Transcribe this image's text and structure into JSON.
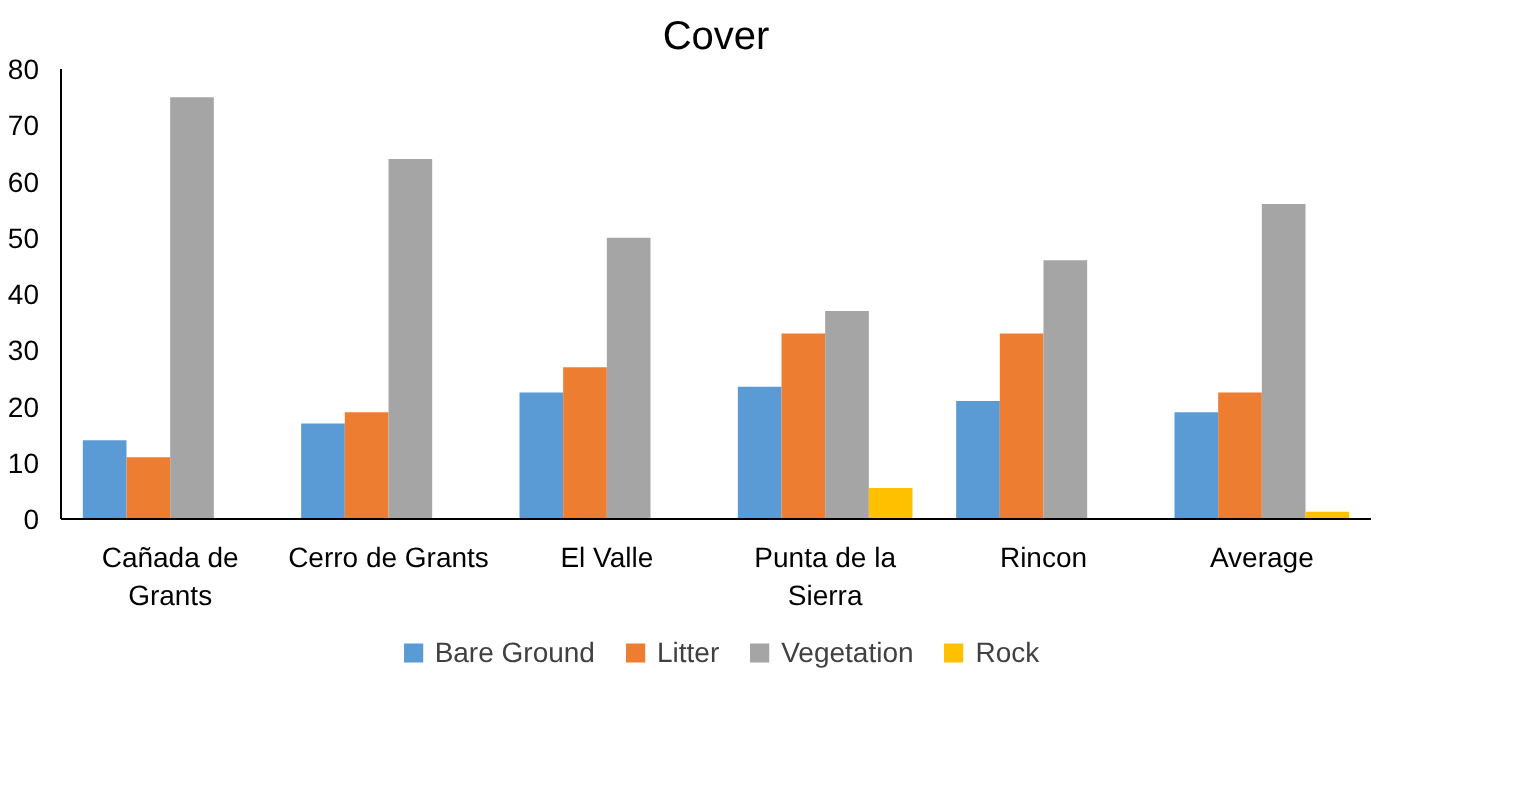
{
  "chart_data": {
    "type": "bar",
    "title": "Cover",
    "categories": [
      "Cañada de Grants",
      "Cerro de Grants",
      "El Valle",
      "Punta de la Sierra",
      "Rincon",
      "Average"
    ],
    "series": [
      {
        "name": "Bare Ground",
        "color": "#5b9bd5",
        "values": [
          14,
          17,
          22.5,
          23.5,
          21,
          19
        ]
      },
      {
        "name": "Litter",
        "color": "#ed7d31",
        "values": [
          11,
          19,
          27,
          33,
          33,
          22.5
        ]
      },
      {
        "name": "Vegetation",
        "color": "#a5a5a5",
        "values": [
          75,
          64,
          50,
          37,
          46,
          56
        ]
      },
      {
        "name": "Rock",
        "color": "#ffc000",
        "values": [
          0,
          0,
          0,
          5.5,
          0,
          1.3
        ]
      }
    ],
    "ylim": [
      0,
      80
    ],
    "yticks": [
      0,
      10,
      20,
      30,
      40,
      50,
      60,
      70,
      80
    ],
    "grid": false,
    "legend": "bottom"
  }
}
